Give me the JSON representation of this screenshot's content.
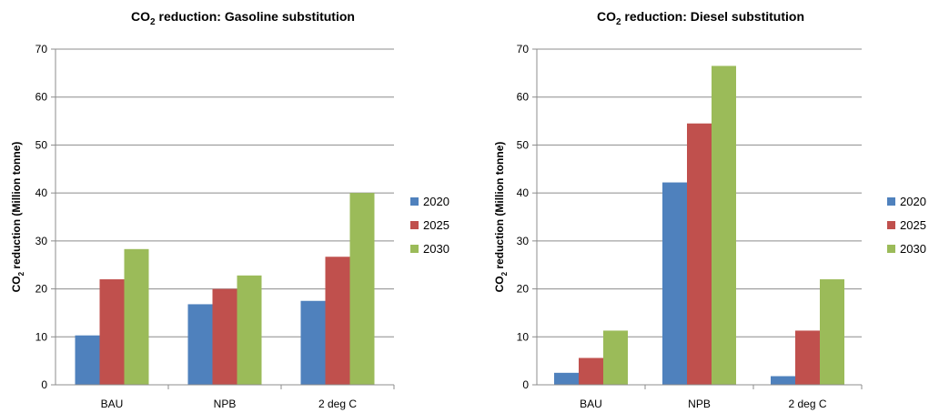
{
  "chart_data": [
    {
      "type": "bar",
      "title": "CO2 reduction: Gasoline substitution",
      "title_parts": {
        "pre": "CO",
        "sub": "2",
        "post": " reduction: Gasoline substitution"
      },
      "ylabel": "",
      "xlabel": "",
      "ylim": [
        0,
        70
      ],
      "yticks": [
        "0",
        "10",
        "20",
        "30",
        "40",
        "50",
        "60",
        "70"
      ],
      "categories": [
        "BAU",
        "NPB",
        "2 deg C"
      ],
      "series": [
        {
          "name": "2020",
          "values": [
            10.3,
            16.8,
            17.5
          ]
        },
        {
          "name": "2025",
          "values": [
            22.0,
            20.0,
            26.7
          ]
        },
        {
          "name": "2030",
          "values": [
            28.3,
            22.8,
            40.0
          ]
        }
      ],
      "legend": "right",
      "grid": true
    },
    {
      "type": "bar",
      "title": "CO2 reduction: Diesel substitution",
      "title_parts": {
        "pre": "CO",
        "sub": "2",
        "post": " reduction: Diesel substitution"
      },
      "ylabel": "CO2 reduction (Million tonne)",
      "ylabel_parts": {
        "pre": "CO",
        "sub": "2",
        "post": " reduction (Million tonne)"
      },
      "xlabel": "",
      "ylim": [
        0,
        70
      ],
      "yticks": [
        "0",
        "10",
        "20",
        "30",
        "40",
        "50",
        "60",
        "70"
      ],
      "categories": [
        "BAU",
        "NPB",
        "2 deg C"
      ],
      "series": [
        {
          "name": "2020",
          "values": [
            2.5,
            42.2,
            1.8
          ]
        },
        {
          "name": "2025",
          "values": [
            5.6,
            54.5,
            11.3
          ]
        },
        {
          "name": "2030",
          "values": [
            11.3,
            66.5,
            22.0
          ]
        }
      ],
      "legend": "right",
      "grid": true
    }
  ],
  "left_ylabel_parts": {
    "pre": "CO",
    "sub": "2",
    "post": " reduction (Million tonne)"
  },
  "colors": {
    "2020": "#4f81bd",
    "2025": "#c0504d",
    "2030": "#9bbb59",
    "grid": "#8c8c8c",
    "axis": "#8c8c8c"
  }
}
